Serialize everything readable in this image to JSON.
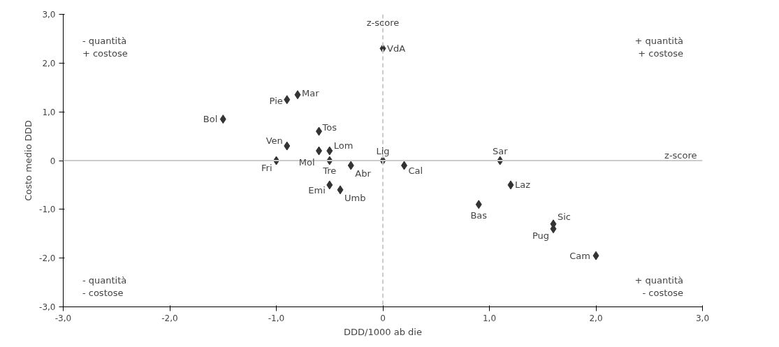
{
  "chart_data": {
    "type": "scatter",
    "xlabel": "DDD/1000 ab die",
    "ylabel": "Costo medio DDD",
    "series": [
      {
        "color": "#333333",
        "x": [
          0,
          -0.8,
          -0.9,
          -1.5,
          -0.6,
          -0.9,
          -0.6,
          -0.5,
          -0.5,
          -1.0,
          -0.3,
          0,
          0.2,
          -0.5,
          -0.4,
          1.1,
          1.2,
          0.9,
          1.6,
          1.6,
          2.0
        ],
        "values": [
          2.3,
          1.35,
          1.25,
          0.85,
          0.6,
          0.3,
          0.2,
          0.2,
          0.0,
          0.0,
          -0.1,
          0,
          -0.1,
          -0.5,
          -0.6,
          0,
          -0.5,
          -0.9,
          -1.3,
          -1.4,
          -1.95
        ]
      }
    ],
    "marker": "diamond",
    "grid": false,
    "xlim": [
      -3,
      3
    ],
    "ylim": [
      -3,
      3
    ],
    "xticks": [
      {
        "value": -3,
        "label": "-3,0"
      },
      {
        "value": -2,
        "label": "-2,0"
      },
      {
        "value": -1,
        "label": "-1,0"
      },
      {
        "value": 0,
        "label": "0"
      },
      {
        "value": 1,
        "label": "1,0"
      },
      {
        "value": 2,
        "label": "2,0"
      },
      {
        "value": 3,
        "label": "3,0"
      }
    ],
    "yticks": [
      {
        "value": -3,
        "label": "-3,0"
      },
      {
        "value": -2,
        "label": "-2,0"
      },
      {
        "value": -1,
        "label": "-1,0"
      },
      {
        "value": 0,
        "label": "0"
      },
      {
        "value": 1,
        "label": "1,0"
      },
      {
        "value": 2,
        "label": "2,0"
      },
      {
        "value": 3,
        "label": "3,0"
      }
    ],
    "ref_lines": [
      {
        "axis": "x",
        "value": 0,
        "label": "z-score",
        "color": "#cccccc",
        "line_style": "dashed"
      },
      {
        "axis": "y",
        "value": 0,
        "label": "z-score",
        "color": "#cccccc",
        "line_style": "solid"
      }
    ],
    "annotations": [
      {
        "text": "VdA",
        "x": 0,
        "y": 2.3
      },
      {
        "text": "Mar",
        "x": -0.8,
        "y": 1.35
      },
      {
        "text": "Pie",
        "x": -0.9,
        "y": 1.25
      },
      {
        "text": "Bol",
        "x": -1.5,
        "y": 0.85
      },
      {
        "text": "Tos",
        "x": -0.6,
        "y": 0.6
      },
      {
        "text": "Ven",
        "x": -0.9,
        "y": 0.3
      },
      {
        "text": "Mol",
        "x": -0.6,
        "y": 0.2
      },
      {
        "text": "Lom",
        "x": -0.5,
        "y": 0.2
      },
      {
        "text": "Tre",
        "x": -0.5,
        "y": 0.0
      },
      {
        "text": "Fri",
        "x": -1.0,
        "y": 0.0
      },
      {
        "text": "Abr",
        "x": -0.3,
        "y": -0.1
      },
      {
        "text": "Lig",
        "x": 0,
        "y": 0
      },
      {
        "text": "Cal",
        "x": 0.2,
        "y": -0.1
      },
      {
        "text": "Emi",
        "x": -0.5,
        "y": -0.5
      },
      {
        "text": "Umb",
        "x": -0.4,
        "y": -0.6
      },
      {
        "text": "Sar",
        "x": 1.1,
        "y": 0
      },
      {
        "text": "Laz",
        "x": 1.2,
        "y": -0.5
      },
      {
        "text": "Bas",
        "x": 0.9,
        "y": -0.9
      },
      {
        "text": "Sic",
        "x": 1.6,
        "y": -1.3
      },
      {
        "text": "Pug",
        "x": 1.6,
        "y": -1.4
      },
      {
        "text": "Cam",
        "x": 2.0,
        "y": -1.95
      },
      "- quantità\n+ costose",
      "+ quantità\n+ costose",
      "- quantità\n- costose",
      "+ quantità\n- costose"
    ]
  }
}
